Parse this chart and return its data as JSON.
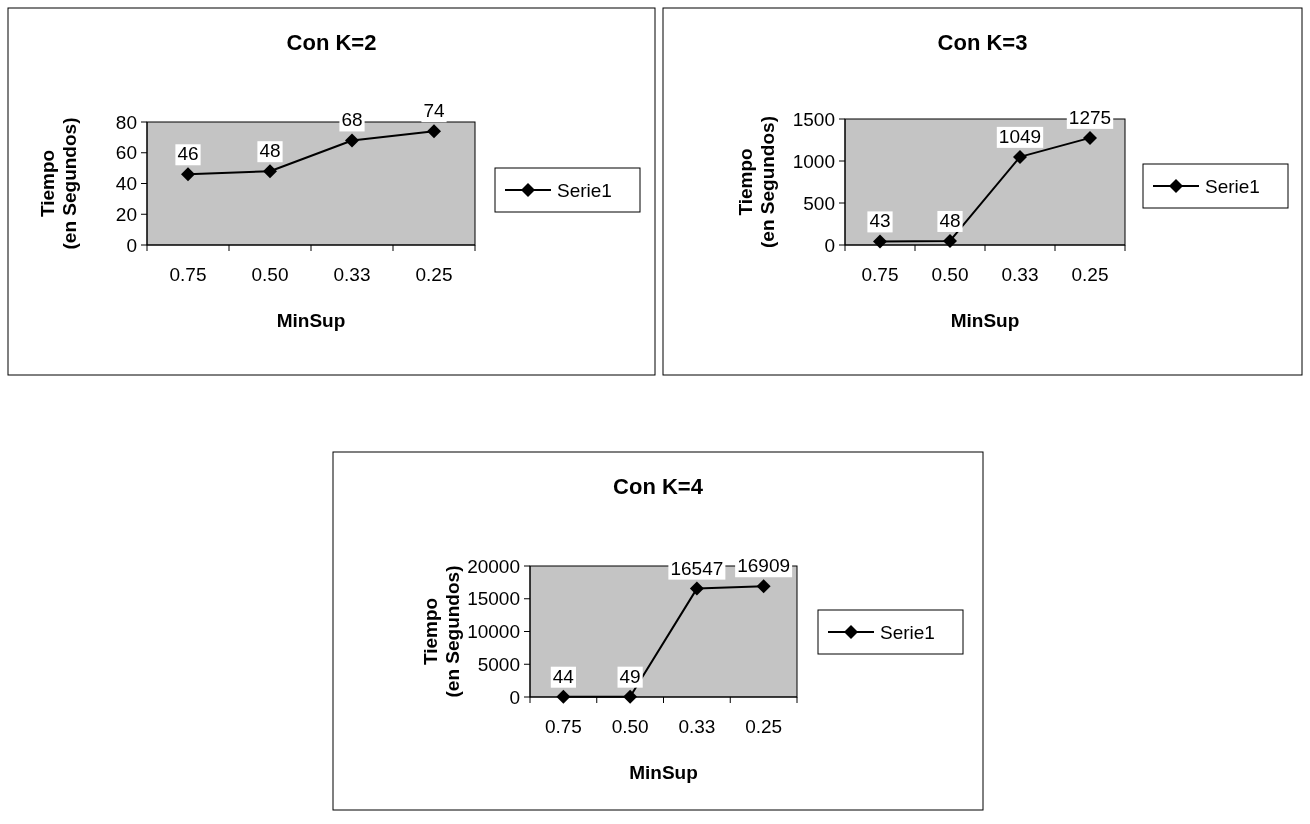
{
  "chart_data": [
    {
      "type": "line",
      "title": "Con K=2",
      "xlabel": "MinSup",
      "ylabel": "Tiempo\n(en Segundos)",
      "categories": [
        "0.75",
        "0.50",
        "0.33",
        "0.25"
      ],
      "series": [
        {
          "name": "Serie1",
          "color": "#000000",
          "values": [
            46,
            48,
            68,
            74
          ]
        }
      ],
      "ylim": [
        0,
        80
      ],
      "yticks": [
        0,
        20,
        40,
        60,
        80
      ],
      "data_labels": true,
      "legend": "right",
      "marker": "diamond",
      "grid": false
    },
    {
      "type": "line",
      "title": "Con K=3",
      "xlabel": "MinSup",
      "ylabel": "Tiempo\n(en Segundos)",
      "categories": [
        "0.75",
        "0.50",
        "0.33",
        "0.25"
      ],
      "series": [
        {
          "name": "Serie1",
          "color": "#000000",
          "values": [
            43,
            48,
            1049,
            1275
          ]
        }
      ],
      "ylim": [
        0,
        1500
      ],
      "yticks": [
        0,
        500,
        1000,
        1500
      ],
      "data_labels": true,
      "legend": "right",
      "marker": "diamond",
      "grid": false
    },
    {
      "type": "line",
      "title": "Con K=4",
      "xlabel": "MinSup",
      "ylabel": "Tiempo\n(en Segundos)",
      "categories": [
        "0.75",
        "0.50",
        "0.33",
        "0.25"
      ],
      "series": [
        {
          "name": "Serie1",
          "color": "#000000",
          "values": [
            44,
            49,
            16547,
            16909
          ]
        }
      ],
      "ylim": [
        0,
        20000
      ],
      "yticks": [
        0,
        5000,
        10000,
        15000,
        20000
      ],
      "data_labels": true,
      "legend": "right",
      "marker": "diamond",
      "grid": false
    }
  ]
}
